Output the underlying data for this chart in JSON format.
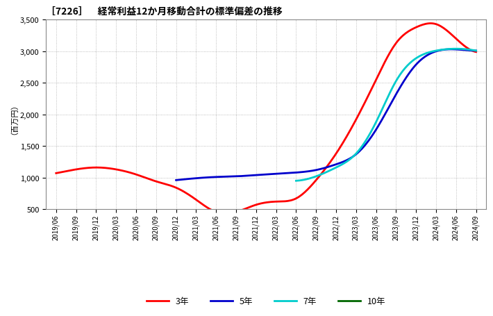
{
  "title": "［7226］　経常利益12か月移動合計の標準偏差の推移",
  "ylabel": "（百万円）",
  "ylim": [
    500,
    3500
  ],
  "yticks": [
    500,
    1000,
    1500,
    2000,
    2500,
    3000,
    3500
  ],
  "background_color": "#ffffff",
  "plot_bg_color": "#ffffff",
  "grid_color": "#aaaaaa",
  "series": {
    "3年": {
      "color": "#ff0000",
      "dates": [
        "2019/06",
        "2019/09",
        "2019/12",
        "2020/03",
        "2020/06",
        "2020/09",
        "2020/12",
        "2021/03",
        "2021/06",
        "2021/09",
        "2021/12",
        "2022/03",
        "2022/06",
        "2022/09",
        "2022/12",
        "2023/03",
        "2023/06",
        "2023/09",
        "2023/12",
        "2024/03",
        "2024/06",
        "2024/09"
      ],
      "values": [
        1070,
        1130,
        1160,
        1130,
        1050,
        940,
        840,
        650,
        455,
        455,
        570,
        620,
        670,
        960,
        1380,
        1920,
        2550,
        3130,
        3380,
        3430,
        3200,
        2990
      ]
    },
    "5年": {
      "color": "#0000cc",
      "dates": [
        "2020/12",
        "2021/03",
        "2021/06",
        "2021/09",
        "2021/12",
        "2022/03",
        "2022/06",
        "2022/09",
        "2022/12",
        "2023/03",
        "2023/06",
        "2023/09",
        "2023/12",
        "2024/03",
        "2024/06",
        "2024/09"
      ],
      "values": [
        960,
        990,
        1010,
        1020,
        1040,
        1060,
        1080,
        1120,
        1210,
        1370,
        1760,
        2320,
        2790,
        3000,
        3030,
        3010
      ]
    },
    "7年": {
      "color": "#00cccc",
      "dates": [
        "2022/06",
        "2022/09",
        "2022/12",
        "2023/03",
        "2023/06",
        "2023/09",
        "2023/12",
        "2024/03",
        "2024/06",
        "2024/09"
      ],
      "values": [
        950,
        1020,
        1160,
        1380,
        1880,
        2530,
        2890,
        3010,
        3040,
        3010
      ]
    },
    "10年": {
      "color": "#006600",
      "dates": [],
      "values": []
    }
  },
  "legend_labels": [
    "3年",
    "5年",
    "7年",
    "10年"
  ],
  "legend_colors": [
    "#ff0000",
    "#0000cc",
    "#00cccc",
    "#006600"
  ],
  "xtick_labels": [
    "2019/06",
    "2019/09",
    "2019/12",
    "2020/03",
    "2020/06",
    "2020/09",
    "2020/12",
    "2021/03",
    "2021/06",
    "2021/09",
    "2021/12",
    "2022/03",
    "2022/06",
    "2022/09",
    "2022/12",
    "2023/03",
    "2023/06",
    "2023/09",
    "2023/12",
    "2024/03",
    "2024/06",
    "2024/09"
  ]
}
